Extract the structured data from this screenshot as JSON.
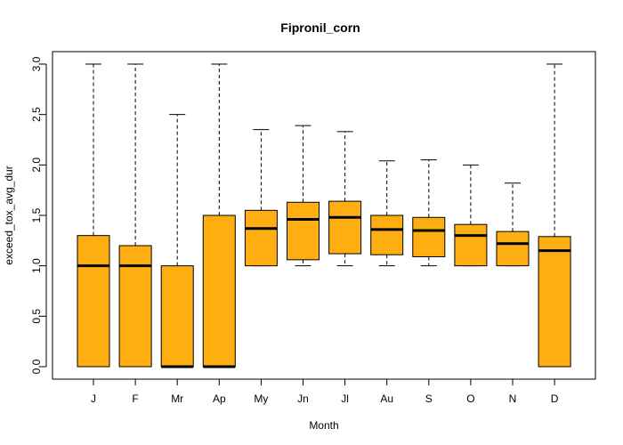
{
  "chart_data": {
    "type": "box",
    "title": "Fipronil_corn",
    "xlabel": "Month",
    "ylabel": "exceed_tox_avg_dur",
    "ylim": [
      -0.1,
      3.1
    ],
    "yticks": [
      "0.0",
      "0.5",
      "1.0",
      "1.5",
      "2.0",
      "2.5",
      "3.0"
    ],
    "yticks_values": [
      0,
      0.5,
      1.0,
      1.5,
      2.0,
      2.5,
      3.0
    ],
    "box_color": "#FFAE12",
    "categories": [
      "J",
      "F",
      "Mr",
      "Ap",
      "My",
      "Jn",
      "Jl",
      "Au",
      "S",
      "O",
      "N",
      "D"
    ],
    "boxes": [
      {
        "whisker_low": 0,
        "q1": 0,
        "median": 1.0,
        "q3": 1.3,
        "whisker_high": 3.0
      },
      {
        "whisker_low": 0,
        "q1": 0,
        "median": 1.0,
        "q3": 1.2,
        "whisker_high": 3.0
      },
      {
        "whisker_low": 0,
        "q1": 0,
        "median": 0,
        "q3": 1.0,
        "whisker_high": 2.5
      },
      {
        "whisker_low": 0,
        "q1": 0,
        "median": 0,
        "q3": 1.5,
        "whisker_high": 3.0
      },
      {
        "whisker_low": 1.0,
        "q1": 1.0,
        "median": 1.37,
        "q3": 1.55,
        "whisker_high": 2.35
      },
      {
        "whisker_low": 1.0,
        "q1": 1.06,
        "median": 1.46,
        "q3": 1.63,
        "whisker_high": 2.39
      },
      {
        "whisker_low": 1.0,
        "q1": 1.12,
        "median": 1.48,
        "q3": 1.64,
        "whisker_high": 2.33
      },
      {
        "whisker_low": 1.0,
        "q1": 1.11,
        "median": 1.36,
        "q3": 1.5,
        "whisker_high": 2.04
      },
      {
        "whisker_low": 1.0,
        "q1": 1.09,
        "median": 1.35,
        "q3": 1.48,
        "whisker_high": 2.05
      },
      {
        "whisker_low": 1.0,
        "q1": 1.0,
        "median": 1.3,
        "q3": 1.41,
        "whisker_high": 2.0
      },
      {
        "whisker_low": 1.0,
        "q1": 1.0,
        "median": 1.22,
        "q3": 1.34,
        "whisker_high": 1.82
      },
      {
        "whisker_low": 0,
        "q1": 0,
        "median": 1.15,
        "q3": 1.29,
        "whisker_high": 3.0
      }
    ],
    "grid": false,
    "legend": "none"
  }
}
